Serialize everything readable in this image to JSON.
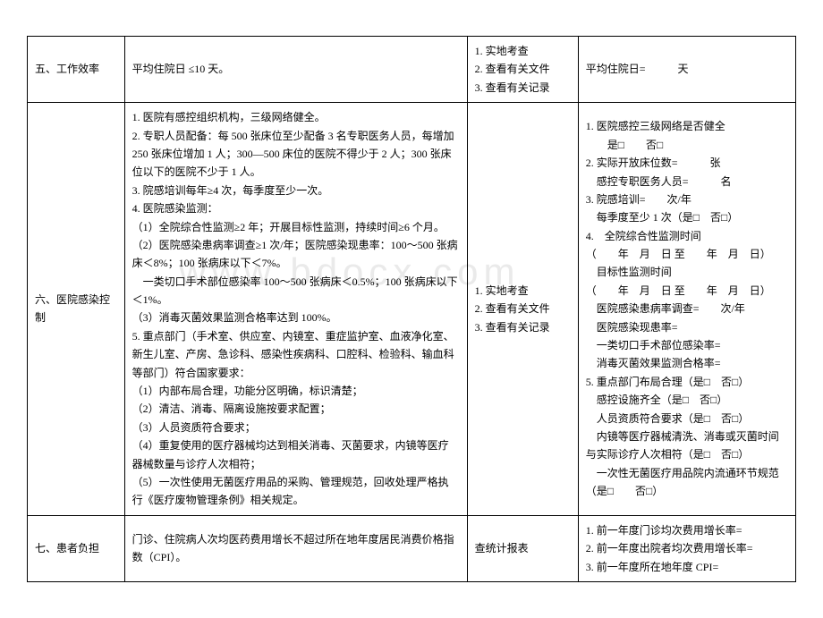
{
  "rows": [
    {
      "title": "五、工作效率",
      "criteria": "平均住院日 ≤10 天。",
      "method": "1. 实地考查\n2. 查看有关文件\n3. 查看有关记录",
      "result": "平均住院日=　　　天"
    },
    {
      "title": "六、医院感染控制",
      "criteria": "1. 医院有感控组织机构，三级网络健全。\n2. 专职人员配备：每 500 张床位至少配备 3 名专职医务人员，每增加 250 张床位增加 1 人；300—500 床位的医院不得少于 2 人；300 张床位以下的医院不少于 1 人。\n3. 院感培训每年≥4 次，每季度至少一次。\n4. 医院感染监测：\n（1）全院综合性监测≥2 年；开展目标性监测，持续时间≥6 个月。\n（2）医院感染患病率调查≥1 次/年；医院感染现患率：100～500 张病床＜8%；100 张病床以下＜7%。\n　一类切口手术部位感染率 100～500 张病床＜0.5%；100 张病床以下＜1%。\n（3）消毒灭菌效果监测合格率达到 100%。\n5. 重点部门（手术室、供应室、内镜室、重症监护室、血液净化室、新生儿室、产房、急诊科、感染性疾病科、口腔科、检验科、输血科等部门）符合国家要求：\n（1）内部布局合理，功能分区明确，标识清楚；\n（2）清洁、消毒、隔离设施按要求配置；\n（3）人员资质符合要求；\n（4）重复使用的医疗器械均达到相关消毒、灭菌要求，内镜等医疗器械数量与诊疗人次相符；\n（5）一次性使用无菌医疗用品的采购、管理规范，回收处理严格执行《医疗废物管理条例》相关规定。",
      "method": "1. 实地考查\n2. 查看有关文件\n3. 查看有关记录",
      "result": "1. 医院感控三级网络是否健全\n　　是□　　否□\n2. 实际开放床位数=　　　张\n　感控专职医务人员=　　　名\n3. 院感培训=　　次/年\n　每季度至少 1 次（是□　否□）\n4.　全院综合性监测时间\n（　　年　月　日 至　　年　月　日）\n　目标性监测时间\n（　　年　月　日 至　　年　月　日）\n　医院感染患病率调查=　　次/年\n　医院感染现患率=\n　一类切口手术部位感染率=\n　消毒灭菌效果监测合格率=\n5. 重点部门布局合理（是□　否□）\n　感控设施齐全（是□　否□）\n　人员资质符合要求（是□　否□）\n　内镜等医疗器械清洗、消毒或灭菌时间与实际诊疗人次相符（是□　否□）\n　一次性无菌医疗用品院内流通环节规范（是□　　否□）"
    },
    {
      "title": "七、患者负担",
      "criteria": "门诊、住院病人次均医药费用增长不超过所在地年度居民消费价格指数（CPI）。",
      "method": "查统计报表",
      "result": "1. 前一年度门诊均次费用增长率=\n2. 前一年度出院者均次费用增长率=\n3. 前一年度所在地年度 CPI="
    }
  ],
  "watermark": "www.bdocx.com"
}
